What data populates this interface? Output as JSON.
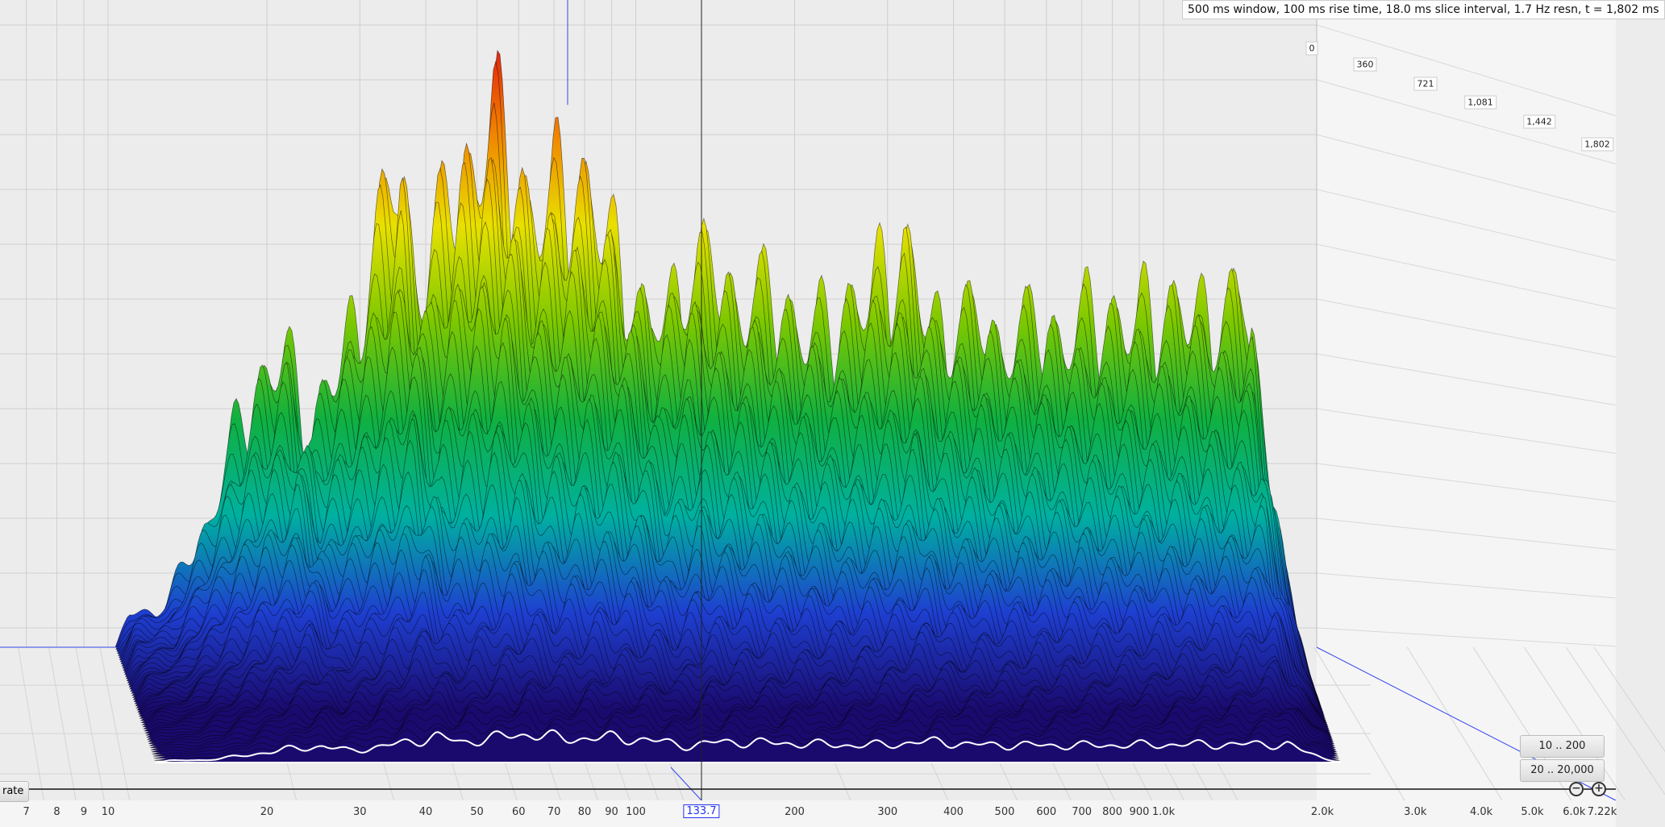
{
  "header": {
    "info": "500 ms window, 100 ms rise time, 18.0 ms slice interval, 1.7 Hz resn, t = 1,802 ms"
  },
  "controls": {
    "rate_label": "rate",
    "range_low": "10 .. 200",
    "range_full": "20 .. 20,000",
    "zoom_out_icon": "minus-circle-icon",
    "zoom_in_icon": "plus-circle-icon"
  },
  "cursor": {
    "frequency_label": "133.7",
    "color": "#2233ee"
  },
  "chart_data": {
    "type": "area",
    "style": "waterfall (3D)",
    "xscale": "log",
    "x_ticks": [
      "7",
      "8",
      "9",
      "10",
      "20",
      "30",
      "40",
      "50",
      "60",
      "70",
      "80",
      "90",
      "100",
      "200",
      "300",
      "400",
      "500",
      "600",
      "700",
      "800",
      "900",
      "1.0k",
      "2.0k",
      "3.0k",
      "4.0k",
      "5.0k",
      "6.0k",
      "7.22k"
    ],
    "x_tick_values": [
      7,
      8,
      9,
      10,
      20,
      30,
      40,
      50,
      60,
      70,
      80,
      90,
      100,
      200,
      300,
      400,
      500,
      600,
      700,
      800,
      900,
      1000,
      2000,
      3000,
      4000,
      5000,
      6000,
      7220
    ],
    "time_ticks": [
      "0",
      "360",
      "721",
      "1,081",
      "1,442",
      "1,802"
    ],
    "time_unit": "ms",
    "grid": true,
    "colormap": [
      "#1a0a6e",
      "#1e3fd0",
      "#00b0a0",
      "#10b040",
      "#7cc800",
      "#e8e000",
      "#f08000",
      "#e01010"
    ]
  }
}
